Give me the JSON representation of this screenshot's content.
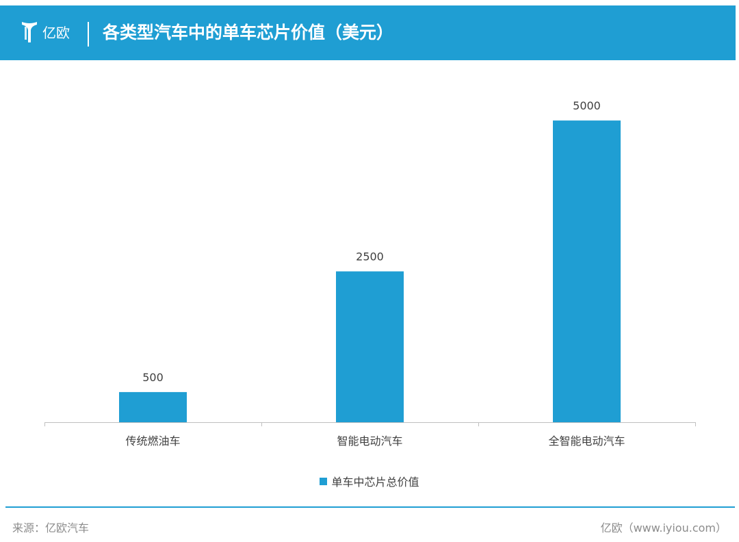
{
  "header": {
    "logo_text": "亿欧",
    "title": "各类型汽车中的单车芯片价值（美元）"
  },
  "footer": {
    "source": "来源：亿欧汽车",
    "credit": "亿欧（www.iyiou.com）"
  },
  "colors": {
    "accent": "#1f9ed3",
    "bar": "#1f9ed3"
  },
  "chart_data": {
    "type": "bar",
    "title": "各类型汽车中的单车芯片价值（美元）",
    "categories": [
      "传统燃油车",
      "智能电动汽车",
      "全智能电动汽车"
    ],
    "series": [
      {
        "name": "单车中芯片总价值",
        "values": [
          500,
          2500,
          5000
        ]
      }
    ],
    "ylim": [
      0,
      5500
    ],
    "grid": false,
    "legend": "bottom-center"
  }
}
